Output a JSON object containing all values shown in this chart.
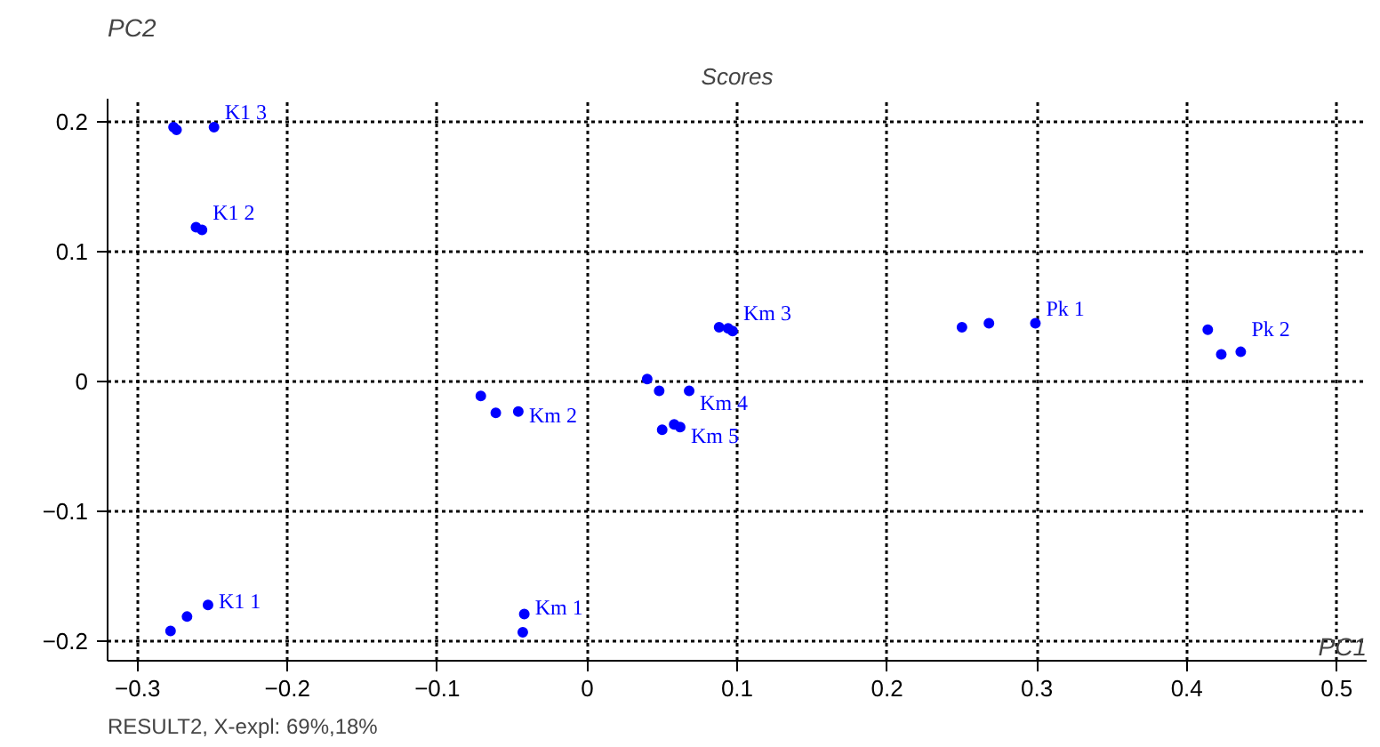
{
  "chart_data": {
    "type": "scatter",
    "title": "Scores",
    "xlabel": "PC1",
    "ylabel": "PC2",
    "annotations": [
      "RESULT2,  X-expl: 69%,18%"
    ],
    "xlim": [
      -0.32,
      0.52
    ],
    "ylim": [
      -0.215,
      0.218
    ],
    "xticks": [
      -0.3,
      -0.2,
      -0.1,
      0,
      0.1,
      0.2,
      0.3,
      0.4,
      0.5
    ],
    "yticks": [
      -0.2,
      -0.1,
      0,
      0.1,
      0.2
    ],
    "grid": true,
    "marker": "circle",
    "series": [
      {
        "name": "K1 1",
        "color": "#0000ff",
        "x": [
          -0.278,
          -0.267,
          -0.253
        ],
        "values": [
          -0.192,
          -0.181,
          -0.172
        ]
      },
      {
        "name": "K1 2",
        "color": "#0000ff",
        "x": [
          -0.261,
          -0.257
        ],
        "values": [
          0.119,
          0.117
        ]
      },
      {
        "name": "K1 3",
        "color": "#0000ff",
        "x": [
          -0.276,
          -0.274,
          -0.249
        ],
        "values": [
          0.196,
          0.194,
          0.196
        ]
      },
      {
        "name": "Km 1",
        "color": "#0000ff",
        "x": [
          -0.042,
          -0.043
        ],
        "values": [
          -0.179,
          -0.193
        ]
      },
      {
        "name": "Km 2",
        "color": "#0000ff",
        "x": [
          -0.071,
          -0.061,
          -0.046
        ],
        "values": [
          -0.011,
          -0.024,
          -0.023
        ]
      },
      {
        "name": "Km 3",
        "color": "#0000ff",
        "x": [
          0.088,
          0.094,
          0.097
        ],
        "values": [
          0.042,
          0.041,
          0.039
        ]
      },
      {
        "name": "Km 4",
        "color": "#0000ff",
        "x": [
          0.04,
          0.048,
          0.068
        ],
        "values": [
          0.002,
          -0.007,
          -0.007
        ]
      },
      {
        "name": "Km 5",
        "color": "#0000ff",
        "x": [
          0.05,
          0.058,
          0.062
        ],
        "values": [
          -0.037,
          -0.033,
          -0.035
        ]
      },
      {
        "name": "Pk 1",
        "color": "#0000ff",
        "x": [
          0.25,
          0.268,
          0.299
        ],
        "values": [
          0.042,
          0.045,
          0.045
        ]
      },
      {
        "name": "Pk 2",
        "color": "#0000ff",
        "x": [
          0.414,
          0.423,
          0.436
        ],
        "values": [
          0.04,
          0.021,
          0.023
        ]
      }
    ]
  }
}
